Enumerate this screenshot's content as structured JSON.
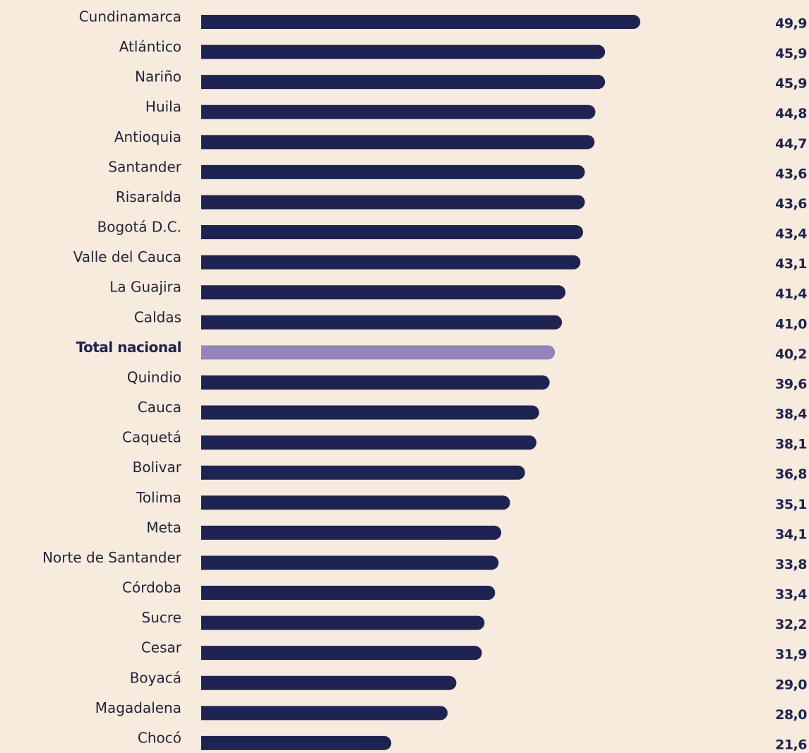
{
  "chart_data": {
    "type": "barh",
    "categories": [
      "Cundinamarca",
      "Atlántico",
      "Nariño",
      "Huila",
      "Antioquia",
      "Santander",
      "Risaralda",
      "Bogotá D.C.",
      "Valle del Cauca",
      "La Guajira",
      "Caldas",
      "Total nacional",
      "Quindio",
      "Cauca",
      "Caquetá",
      "Bolivar",
      "Tolima",
      "Meta",
      "Norte de Santander",
      "Córdoba",
      "Sucre",
      "Cesar",
      "Boyacá",
      "Magadalena",
      "Chocó"
    ],
    "values": [
      49.9,
      45.9,
      45.9,
      44.8,
      44.7,
      43.6,
      43.6,
      43.4,
      43.1,
      41.4,
      41.0,
      40.2,
      39.6,
      38.4,
      38.1,
      36.8,
      35.1,
      34.1,
      33.8,
      33.4,
      32.2,
      31.9,
      29.0,
      28.0,
      21.6
    ],
    "value_labels": [
      "49,9",
      "45,9",
      "45,9",
      "44,8",
      "44,7",
      "43,6",
      "43,6",
      "43,4",
      "43,1",
      "41,4",
      "41,0",
      "40,2",
      "39,6",
      "38,4",
      "38,1",
      "36,8",
      "35,1",
      "34,1",
      "33,8",
      "33,4",
      "32,2",
      "31,9",
      "29,0",
      "28,0",
      "21,6"
    ],
    "highlight_color": "#9484bb",
    "colors": [
      "#1e2352",
      "#1e2352",
      "#1e2352",
      "#1e2352",
      "#1e2352",
      "#1e2352",
      "#1e2352",
      "#1e2352",
      "#1e2352",
      "#1e2352",
      "#1e2352",
      "#9484bb",
      "#1e2352",
      "#1e2352",
      "#1e2352",
      "#1e2352",
      "#1e2352",
      "#1e2352",
      "#1e2352",
      "#1e2352",
      "#1e2352",
      "#1e2352",
      "#1e2352",
      "#1e2352",
      "#1e2352"
    ]
  }
}
